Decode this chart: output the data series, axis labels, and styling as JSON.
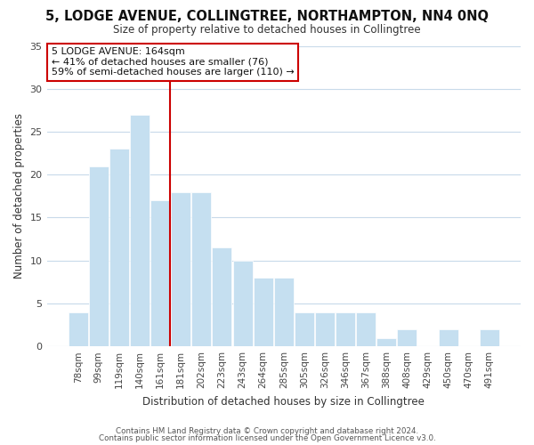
{
  "title": "5, LODGE AVENUE, COLLINGTREE, NORTHAMPTON, NN4 0NQ",
  "subtitle": "Size of property relative to detached houses in Collingtree",
  "xlabel": "Distribution of detached houses by size in Collingtree",
  "ylabel": "Number of detached properties",
  "bar_labels": [
    "78sqm",
    "99sqm",
    "119sqm",
    "140sqm",
    "161sqm",
    "181sqm",
    "202sqm",
    "223sqm",
    "243sqm",
    "264sqm",
    "285sqm",
    "305sqm",
    "326sqm",
    "346sqm",
    "367sqm",
    "388sqm",
    "408sqm",
    "429sqm",
    "450sqm",
    "470sqm",
    "491sqm"
  ],
  "bar_values": [
    4,
    21,
    23,
    27,
    17,
    18,
    18,
    11.5,
    10,
    8,
    8,
    4,
    4,
    4,
    4,
    1,
    2,
    0,
    2,
    0,
    2
  ],
  "bar_color": "#c5dff0",
  "bar_edge_color": "#ffffff",
  "highlight_line_color": "#cc0000",
  "ylim": [
    0,
    35
  ],
  "yticks": [
    0,
    5,
    10,
    15,
    20,
    25,
    30,
    35
  ],
  "annotation_line1": "5 LODGE AVENUE: 164sqm",
  "annotation_line2": "← 41% of detached houses are smaller (76)",
  "annotation_line3": "59% of semi-detached houses are larger (110) →",
  "annotation_box_edge": "#cc0000",
  "footer_line1": "Contains HM Land Registry data © Crown copyright and database right 2024.",
  "footer_line2": "Contains public sector information licensed under the Open Government Licence v3.0.",
  "background_color": "#ffffff",
  "grid_color": "#c8daea"
}
